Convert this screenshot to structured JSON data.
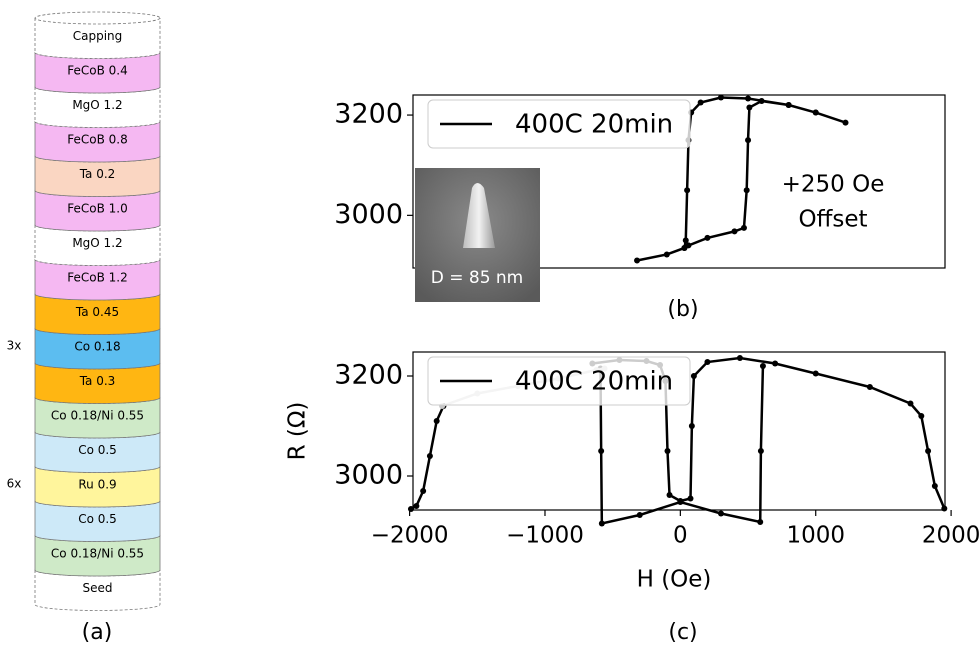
{
  "stack": {
    "caption": "(a)",
    "layers": [
      {
        "label": "Capping",
        "color": "#ffffff"
      },
      {
        "label": "FeCoB 0.4",
        "color": "#f5b8f2"
      },
      {
        "label": "MgO 1.2",
        "color": "#ffffff"
      },
      {
        "label": "FeCoB 0.8",
        "color": "#f5b8f2"
      },
      {
        "label": "Ta 0.2",
        "color": "#fad6c2"
      },
      {
        "label": "FeCoB 1.0",
        "color": "#f5b8f2"
      },
      {
        "label": "MgO 1.2",
        "color": "#ffffff"
      },
      {
        "label": "FeCoB 1.2",
        "color": "#f5b8f2"
      },
      {
        "label": "Ta 0.45",
        "color": "#ffb612"
      },
      {
        "label": "Co 0.18",
        "color": "#5cbdf0"
      },
      {
        "label": "Ta 0.3",
        "color": "#ffb612"
      },
      {
        "label": "Co 0.18/Ni 0.55",
        "color": "#cfeac8"
      },
      {
        "label": "Co 0.5",
        "color": "#cde9f8"
      },
      {
        "label": "Ru 0.9",
        "color": "#fff59c"
      },
      {
        "label": "Co 0.5",
        "color": "#cde9f8"
      },
      {
        "label": "Co 0.18/Ni 0.55",
        "color": "#cfeac8"
      },
      {
        "label": "Seed",
        "color": "#ffffff"
      }
    ],
    "repeats": [
      {
        "label": "3x",
        "layer": 9
      },
      {
        "label": "6x",
        "layer": 13
      }
    ]
  },
  "chart_data": [
    {
      "type": "line",
      "caption": "(b)",
      "inset_label": "D = 85 nm",
      "annotations": [
        "+250 Oe",
        "Offset"
      ],
      "xlim": [
        -1975,
        1955
      ],
      "ylim": [
        2895,
        3240
      ],
      "yticks": [
        3000,
        3200
      ],
      "legend": "upper left",
      "series": [
        {
          "name": "400C 20min",
          "color": "#000000",
          "x": [
            -320,
            -100,
            30,
            60,
            200,
            400,
            470,
            490,
            500,
            510,
            600,
            800,
            1000,
            1220,
            1000,
            800,
            500,
            300,
            150,
            80,
            60,
            50,
            40,
            30
          ],
          "values": [
            2910,
            2922,
            2935,
            2940,
            2955,
            2968,
            2975,
            3050,
            3150,
            3215,
            3228,
            3220,
            3205,
            3185,
            3205,
            3220,
            3233,
            3235,
            3225,
            3205,
            3150,
            3050,
            2950,
            2935
          ]
        }
      ]
    },
    {
      "type": "line",
      "caption": "(c)",
      "xlabel": "H (Oe)",
      "ylabel": "R (Ω)",
      "xlim": [
        -1975,
        1955
      ],
      "ylim": [
        2932,
        3248
      ],
      "yticks": [
        3000,
        3200
      ],
      "xticks": [
        {
          "value": -2000,
          "label": "−2000"
        },
        {
          "value": -1000,
          "label": "−1000"
        },
        0,
        1000,
        2000
      ],
      "legend": "upper left",
      "series": [
        {
          "name": "400C 20min",
          "color": "#000000",
          "x": [
            -1990,
            -1950,
            -1900,
            -1850,
            -1800,
            -1750,
            null,
            -650,
            -450,
            -250,
            -150,
            -110,
            -95,
            -80,
            0,
            75,
            85,
            100,
            200,
            440,
            700,
            1000,
            1400,
            1700,
            1780,
            1830,
            1880,
            1950,
            null,
            -590,
            -585,
            -580,
            -300,
            0,
            300,
            590,
            595,
            610
          ],
          "values": [
            2934,
            2940,
            2970,
            3040,
            3110,
            3140,
            null,
            3225,
            3232,
            3230,
            3222,
            3190,
            3050,
            2962,
            2950,
            2955,
            3100,
            3200,
            3228,
            3236,
            3225,
            3205,
            3178,
            3145,
            3120,
            3050,
            2980,
            2935,
            null,
            3215,
            3050,
            2905,
            2922,
            2948,
            2925,
            2908,
            3050,
            3220
          ]
        },
        {
          "color": "#c8c8c8",
          "x": [
            -1760,
            -1500,
            -1200,
            -900,
            -620,
            -560
          ],
          "values": [
            3140,
            3165,
            3180,
            3195,
            3212,
            3215
          ]
        }
      ]
    }
  ]
}
